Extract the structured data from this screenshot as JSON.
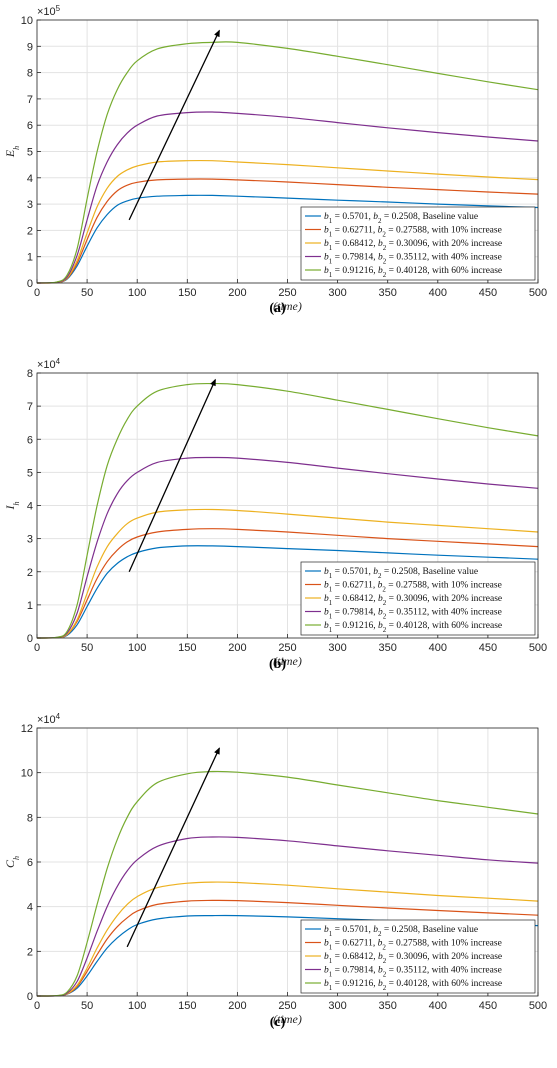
{
  "chart_data": [
    {
      "type": "line",
      "caption": "(a)",
      "xlabel": "(time)",
      "ylabel": "E",
      "ylabel_sub": "h",
      "multiplier_base": "×10",
      "multiplier_exp": "5",
      "xlim": [
        0,
        500
      ],
      "ylim": [
        0,
        10
      ],
      "xticks": [
        0,
        50,
        100,
        150,
        200,
        250,
        300,
        350,
        400,
        450,
        500
      ],
      "yticks": [
        0,
        1,
        2,
        3,
        4,
        5,
        6,
        7,
        8,
        9,
        10
      ],
      "grid": true,
      "legend_position": "bottom-right",
      "arrow": {
        "from": [
          92,
          2.4
        ],
        "to": [
          182,
          9.6
        ]
      },
      "x": [
        0,
        20,
        30,
        40,
        50,
        60,
        70,
        80,
        90,
        100,
        120,
        150,
        175,
        200,
        250,
        300,
        350,
        400,
        450,
        500
      ],
      "series": [
        {
          "name": "b1 = 0.5701, b2 = 0.2508, Baseline value",
          "color": "#0072BD",
          "values": [
            0,
            0.02,
            0.15,
            0.65,
            1.4,
            2.1,
            2.6,
            2.95,
            3.12,
            3.22,
            3.3,
            3.33,
            3.33,
            3.3,
            3.23,
            3.15,
            3.08,
            3.0,
            2.93,
            2.87
          ]
        },
        {
          "name": "b1 = 0.62711, b2 = 0.27588, with 10% increase",
          "color": "#D95319",
          "values": [
            0,
            0.02,
            0.17,
            0.75,
            1.65,
            2.5,
            3.1,
            3.5,
            3.72,
            3.83,
            3.92,
            3.95,
            3.95,
            3.92,
            3.84,
            3.74,
            3.64,
            3.55,
            3.46,
            3.38
          ]
        },
        {
          "name": "b1 = 0.68412, b2 = 0.30096, with 20% increase",
          "color": "#EDB120",
          "values": [
            0,
            0.02,
            0.19,
            0.85,
            1.9,
            2.9,
            3.6,
            4.05,
            4.3,
            4.45,
            4.6,
            4.65,
            4.65,
            4.6,
            4.5,
            4.38,
            4.26,
            4.14,
            4.03,
            3.93
          ]
        },
        {
          "name": "b1 = 0.79814, b2 = 0.35112, with 40% increase",
          "color": "#7E2F8E",
          "values": [
            0,
            0.03,
            0.23,
            1.05,
            2.4,
            3.7,
            4.6,
            5.25,
            5.7,
            6.0,
            6.35,
            6.48,
            6.5,
            6.45,
            6.3,
            6.1,
            5.9,
            5.72,
            5.55,
            5.4
          ]
        },
        {
          "name": "b1 = 0.91216, b2 = 0.40128, with 60% increase",
          "color": "#77AC30",
          "values": [
            0,
            0.04,
            0.3,
            1.3,
            3.2,
            5.0,
            6.4,
            7.35,
            8.0,
            8.45,
            8.9,
            9.1,
            9.15,
            9.15,
            8.92,
            8.62,
            8.3,
            7.97,
            7.65,
            7.35
          ]
        }
      ]
    },
    {
      "type": "line",
      "caption": "(b)",
      "xlabel": "(time)",
      "ylabel": "I",
      "ylabel_sub": "h",
      "multiplier_base": "×10",
      "multiplier_exp": "4",
      "xlim": [
        0,
        500
      ],
      "ylim": [
        0,
        8
      ],
      "xticks": [
        0,
        50,
        100,
        150,
        200,
        250,
        300,
        350,
        400,
        450,
        500
      ],
      "yticks": [
        0,
        1,
        2,
        3,
        4,
        5,
        6,
        7,
        8
      ],
      "grid": true,
      "legend_position": "bottom-right",
      "arrow": {
        "from": [
          92,
          2.0
        ],
        "to": [
          178,
          7.8
        ]
      },
      "x": [
        0,
        20,
        30,
        40,
        50,
        60,
        70,
        80,
        90,
        100,
        120,
        150,
        175,
        200,
        250,
        300,
        350,
        400,
        450,
        500
      ],
      "series": [
        {
          "name": "b1 = 0.5701, b2 = 0.2508, Baseline value",
          "color": "#0072BD",
          "values": [
            0,
            0.01,
            0.08,
            0.4,
            0.95,
            1.5,
            1.95,
            2.25,
            2.45,
            2.58,
            2.72,
            2.78,
            2.78,
            2.76,
            2.7,
            2.64,
            2.57,
            2.5,
            2.44,
            2.38
          ]
        },
        {
          "name": "b1 = 0.62711, b2 = 0.27588, with 10% increase",
          "color": "#D95319",
          "values": [
            0,
            0.01,
            0.1,
            0.5,
            1.15,
            1.8,
            2.3,
            2.65,
            2.9,
            3.05,
            3.2,
            3.28,
            3.3,
            3.28,
            3.2,
            3.1,
            3.0,
            2.92,
            2.84,
            2.76
          ]
        },
        {
          "name": "b1 = 0.68412, b2 = 0.30096, with 20% increase",
          "color": "#EDB120",
          "values": [
            0,
            0.01,
            0.11,
            0.55,
            1.35,
            2.15,
            2.75,
            3.15,
            3.45,
            3.62,
            3.8,
            3.87,
            3.88,
            3.85,
            3.74,
            3.62,
            3.5,
            3.4,
            3.3,
            3.2
          ]
        },
        {
          "name": "b1 = 0.79814, b2 = 0.35112, with 40% increase",
          "color": "#7E2F8E",
          "values": [
            0,
            0.02,
            0.15,
            0.75,
            1.85,
            2.9,
            3.75,
            4.35,
            4.75,
            5.0,
            5.3,
            5.43,
            5.45,
            5.43,
            5.3,
            5.13,
            4.96,
            4.8,
            4.65,
            4.52
          ]
        },
        {
          "name": "b1 = 0.91216, b2 = 0.40128, with 60% increase",
          "color": "#77AC30",
          "values": [
            0,
            0.02,
            0.2,
            1.0,
            2.5,
            4.0,
            5.2,
            6.0,
            6.6,
            7.0,
            7.45,
            7.65,
            7.68,
            7.65,
            7.45,
            7.18,
            6.9,
            6.62,
            6.35,
            6.1
          ]
        }
      ]
    },
    {
      "type": "line",
      "caption": "(c)",
      "xlabel": "(time)",
      "ylabel": "C",
      "ylabel_sub": "h",
      "multiplier_base": "×10",
      "multiplier_exp": "4",
      "xlim": [
        0,
        500
      ],
      "ylim": [
        0,
        12
      ],
      "xticks": [
        0,
        50,
        100,
        150,
        200,
        250,
        300,
        350,
        400,
        450,
        500
      ],
      "yticks": [
        0,
        2,
        4,
        6,
        8,
        10,
        12
      ],
      "grid": true,
      "legend_position": "bottom-right",
      "arrow": {
        "from": [
          90,
          2.2
        ],
        "to": [
          182,
          11.1
        ]
      },
      "x": [
        0,
        20,
        30,
        40,
        50,
        60,
        70,
        80,
        90,
        100,
        120,
        150,
        175,
        200,
        250,
        300,
        350,
        400,
        450,
        500
      ],
      "series": [
        {
          "name": "b1 = 0.5701, b2 = 0.2508, Baseline value",
          "color": "#0072BD",
          "values": [
            0,
            0.01,
            0.08,
            0.35,
            0.9,
            1.55,
            2.15,
            2.6,
            2.95,
            3.2,
            3.45,
            3.58,
            3.6,
            3.6,
            3.54,
            3.46,
            3.38,
            3.3,
            3.22,
            3.15
          ]
        },
        {
          "name": "b1 = 0.62711, b2 = 0.27588, with 10% increase",
          "color": "#D95319",
          "values": [
            0,
            0.01,
            0.09,
            0.42,
            1.1,
            1.85,
            2.55,
            3.1,
            3.5,
            3.8,
            4.1,
            4.25,
            4.28,
            4.27,
            4.18,
            4.06,
            3.94,
            3.83,
            3.72,
            3.62
          ]
        },
        {
          "name": "b1 = 0.68412, b2 = 0.30096, with 20% increase",
          "color": "#EDB120",
          "values": [
            0,
            0.01,
            0.1,
            0.48,
            1.25,
            2.15,
            2.95,
            3.6,
            4.1,
            4.45,
            4.85,
            5.05,
            5.1,
            5.08,
            4.96,
            4.8,
            4.65,
            4.5,
            4.38,
            4.25
          ]
        },
        {
          "name": "b1 = 0.79814, b2 = 0.35112, with 40% increase",
          "color": "#7E2F8E",
          "values": [
            0,
            0.01,
            0.13,
            0.65,
            1.7,
            2.9,
            4.0,
            4.9,
            5.6,
            6.1,
            6.7,
            7.05,
            7.12,
            7.1,
            6.95,
            6.72,
            6.5,
            6.3,
            6.1,
            5.95
          ]
        },
        {
          "name": "b1 = 0.91216, b2 = 0.40128, with 60% increase",
          "color": "#77AC30",
          "values": [
            0,
            0.02,
            0.18,
            0.9,
            2.4,
            4.1,
            5.7,
            7.0,
            8.0,
            8.7,
            9.55,
            9.95,
            10.05,
            10.02,
            9.8,
            9.45,
            9.1,
            8.75,
            8.45,
            8.15
          ]
        }
      ]
    }
  ]
}
